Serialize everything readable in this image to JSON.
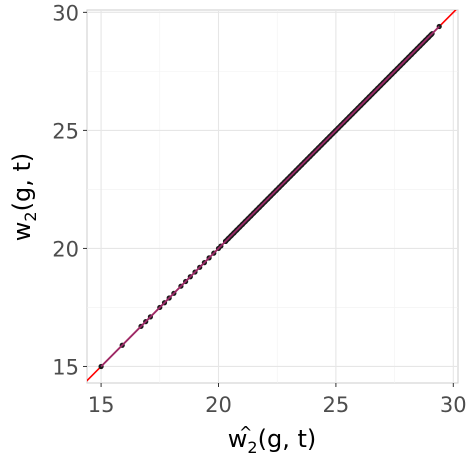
{
  "chart_data": {
    "type": "scatter",
    "xlabel": "ŵ2(g, t)",
    "ylabel": "w2(g, t)",
    "xlabel_parts": {
      "main": "w",
      "hat": "^",
      "sub": "2",
      "args": "(g, t)"
    },
    "ylabel_parts": {
      "main": "w",
      "sub": "2",
      "args": "(g, t)"
    },
    "xlim": [
      14.4,
      30.2
    ],
    "ylim": [
      14.3,
      30.1
    ],
    "xticks": [
      "15",
      "20",
      "25",
      "30"
    ],
    "yticks": [
      "15",
      "20",
      "25",
      "30"
    ],
    "x_tick_values": [
      15,
      20,
      25,
      30
    ],
    "y_tick_values": [
      15,
      20,
      25,
      30
    ],
    "minor_grid": [
      17.5,
      22.5,
      27.5
    ],
    "grid": true,
    "reference_line": {
      "slope": 1,
      "intercept": 0,
      "color": "#ff0000"
    },
    "point_color": "#1a1a1a",
    "trend_color": "#9c2a68",
    "sparse_points": [
      15.0,
      15.9,
      16.7,
      16.9,
      17.1,
      17.5,
      17.7,
      17.9,
      18.1,
      18.4,
      18.6,
      18.8,
      19.0,
      19.2,
      19.4,
      19.6,
      19.8,
      20.0,
      20.1,
      20.3
    ],
    "dense_range": [
      20.3,
      29.1
    ],
    "end_points": [
      29.4
    ]
  }
}
